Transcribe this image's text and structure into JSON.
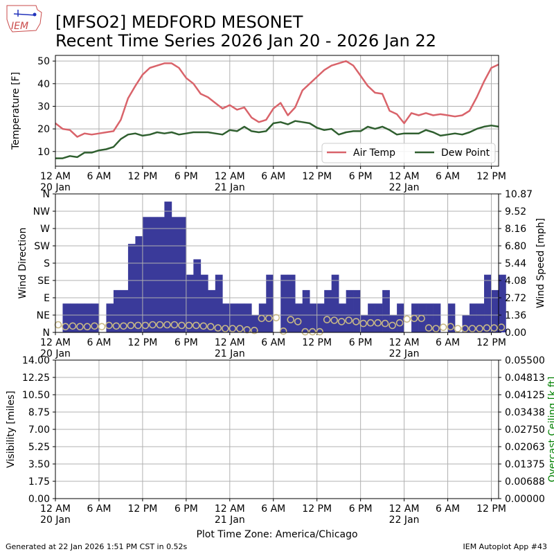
{
  "header": {
    "title_line1": "[MFSO2] MEDFORD MESONET",
    "title_line2": "Recent Time Series 2026 Jan 20 - 2026 Jan 22",
    "logo_text": "IEM"
  },
  "footer": {
    "generated": "Generated at 22 Jan 2026 1:51 PM CST in 0.52s",
    "app": "IEM Autoplot App #43",
    "timezone_label": "Plot Time Zone: America/Chicago"
  },
  "colors": {
    "air_temp": "#d9636a",
    "dew_point": "#2f5f2f",
    "wind_bar": "#3a3a9a",
    "wind_marker": "#c8b986",
    "ceiling_label": "#008000"
  },
  "chart_data": [
    {
      "type": "line",
      "ylabel": "Temperature [F]",
      "xlim": [
        0,
        61
      ],
      "ylim": [
        3.5,
        52.5
      ],
      "yticks": [
        10,
        20,
        30,
        40,
        50
      ],
      "xticks": [
        {
          "h": 0,
          "label": "12 AM",
          "sub": "20 Jan"
        },
        {
          "h": 6,
          "label": "6 AM",
          "sub": ""
        },
        {
          "h": 12,
          "label": "12 PM",
          "sub": ""
        },
        {
          "h": 18,
          "label": "6 PM",
          "sub": ""
        },
        {
          "h": 24,
          "label": "12 AM",
          "sub": "21 Jan"
        },
        {
          "h": 30,
          "label": "6 AM",
          "sub": ""
        },
        {
          "h": 36,
          "label": "12 PM",
          "sub": ""
        },
        {
          "h": 42,
          "label": "6 PM",
          "sub": ""
        },
        {
          "h": 48,
          "label": "12 AM",
          "sub": "22 Jan"
        },
        {
          "h": 54,
          "label": "6 AM",
          "sub": ""
        },
        {
          "h": 60,
          "label": "12 PM",
          "sub": ""
        }
      ],
      "legend": "lower right",
      "series": [
        {
          "name": "Air Temp",
          "x": [
            0,
            1,
            2,
            3,
            4,
            5,
            6,
            7,
            8,
            9,
            10,
            11,
            12,
            13,
            14,
            15,
            16,
            17,
            18,
            19,
            20,
            21,
            22,
            23,
            24,
            25,
            26,
            27,
            28,
            29,
            30,
            31,
            32,
            33,
            34,
            35,
            36,
            37,
            38,
            39,
            40,
            41,
            42,
            43,
            44,
            45,
            46,
            47,
            48,
            49,
            50,
            51,
            52,
            53,
            54,
            55,
            56,
            57,
            58,
            59,
            60,
            61
          ],
          "y": [
            22.5,
            20,
            19.5,
            16.5,
            18,
            17.5,
            18,
            18.5,
            19,
            24,
            33.5,
            39,
            44,
            47,
            48,
            49,
            49,
            47,
            42.5,
            40,
            35.5,
            34,
            31.5,
            29,
            30.5,
            28.5,
            29.5,
            25,
            23,
            24,
            29,
            31.5,
            26,
            29.5,
            37,
            40,
            43,
            46,
            48,
            49,
            50,
            48,
            43.5,
            39,
            36,
            35.5,
            28,
            26.5,
            22.5,
            27,
            26,
            27,
            26,
            26.5,
            26,
            25.5,
            26,
            28,
            34,
            41,
            47,
            48.5
          ]
        },
        {
          "name": "Dew Point",
          "x": [
            0,
            1,
            2,
            3,
            4,
            5,
            6,
            7,
            8,
            9,
            10,
            11,
            12,
            13,
            14,
            15,
            16,
            17,
            18,
            19,
            20,
            21,
            22,
            23,
            24,
            25,
            26,
            27,
            28,
            29,
            30,
            31,
            32,
            33,
            34,
            35,
            36,
            37,
            38,
            39,
            40,
            41,
            42,
            43,
            44,
            45,
            46,
            47,
            48,
            49,
            50,
            51,
            52,
            53,
            54,
            55,
            56,
            57,
            58,
            59,
            60,
            61
          ],
          "y": [
            7,
            7,
            8,
            7.5,
            9.5,
            9.5,
            10.5,
            11,
            12,
            15.5,
            17.5,
            18,
            17,
            17.5,
            18.5,
            18,
            18.5,
            17.5,
            18,
            18.5,
            18.5,
            18.5,
            18,
            17.5,
            19.5,
            19,
            21,
            19,
            18.5,
            19,
            22.5,
            23,
            22,
            23.5,
            23,
            22.5,
            20.5,
            19.5,
            20,
            17.5,
            18.5,
            19,
            19,
            21,
            20,
            21,
            19.5,
            17.5,
            18,
            18,
            18,
            19.5,
            18.5,
            17,
            17.5,
            18,
            17.5,
            18.5,
            20,
            21,
            21.5,
            21
          ]
        }
      ]
    },
    {
      "type": "bar",
      "ylabel": "Wind Direction",
      "y2label": "Wind Speed [mph]",
      "xlim": [
        0,
        61
      ],
      "ylim": [
        0,
        360
      ],
      "yticks": [
        0,
        45,
        90,
        135,
        180,
        225,
        270,
        315,
        360
      ],
      "ytick_labels": [
        "N",
        "NE",
        "E",
        "SE",
        "S",
        "SW",
        "W",
        "NW",
        "N"
      ],
      "y2lim": [
        0,
        10.87
      ],
      "y2ticks": [
        "0.00",
        "1.36",
        "2.72",
        "4.08",
        "5.44",
        "6.80",
        "8.16",
        "9.52",
        "10.87"
      ],
      "series": [
        {
          "name": "Wind Direction (deg)",
          "x": [
            0,
            1,
            2,
            3,
            4,
            5,
            6,
            7,
            8,
            9,
            10,
            11,
            12,
            13,
            14,
            15,
            16,
            17,
            18,
            19,
            20,
            21,
            22,
            23,
            24,
            25,
            26,
            27,
            28,
            29,
            30,
            31,
            32,
            33,
            34,
            35,
            36,
            37,
            38,
            39,
            40,
            41,
            42,
            43,
            44,
            45,
            46,
            47,
            48,
            49,
            50,
            51,
            52,
            53,
            54,
            55,
            56,
            57,
            58,
            59,
            60,
            61
          ],
          "y": [
            0,
            75,
            75,
            75,
            75,
            75,
            0,
            75,
            110,
            110,
            230,
            250,
            300,
            300,
            300,
            340,
            300,
            300,
            150,
            190,
            150,
            110,
            150,
            75,
            75,
            75,
            75,
            45,
            75,
            150,
            0,
            150,
            150,
            75,
            110,
            75,
            75,
            110,
            150,
            75,
            110,
            110,
            45,
            75,
            75,
            110,
            45,
            75,
            0,
            75,
            75,
            75,
            75,
            0,
            75,
            0,
            45,
            75,
            75,
            150,
            110,
            150
          ]
        },
        {
          "name": "Wind Speed (mph)",
          "x": [
            0,
            1,
            2,
            3,
            4,
            5,
            6,
            7,
            8,
            9,
            10,
            11,
            12,
            13,
            14,
            15,
            16,
            17,
            18,
            19,
            20,
            21,
            22,
            23,
            24,
            25,
            26,
            27,
            28,
            29,
            30,
            31,
            32,
            33,
            34,
            35,
            36,
            37,
            38,
            39,
            40,
            41,
            42,
            43,
            44,
            45,
            46,
            47,
            48,
            49,
            50,
            51,
            52,
            53,
            54,
            55,
            56,
            57,
            58,
            59,
            60,
            61
          ],
          "y": [
            0.6,
            0.45,
            0.5,
            0.45,
            0.45,
            0.5,
            0.45,
            0.55,
            0.5,
            0.5,
            0.55,
            0.55,
            0.55,
            0.6,
            0.6,
            0.6,
            0.6,
            0.55,
            0.55,
            0.55,
            0.5,
            0.45,
            0.35,
            0.3,
            0.3,
            0.3,
            0.2,
            0.15,
            1.1,
            1.1,
            1.15,
            0.1,
            1.0,
            0.85,
            0.05,
            0.05,
            0.05,
            1.0,
            0.95,
            0.85,
            0.95,
            0.85,
            0.7,
            0.75,
            0.75,
            0.7,
            0.55,
            0.75,
            1.05,
            1.1,
            1.1,
            0.35,
            0.3,
            0.4,
            0.45,
            0.3,
            0.3,
            0.3,
            0.3,
            0.35,
            0.35,
            0.4
          ]
        }
      ]
    },
    {
      "type": "line",
      "ylabel": "Visibility [miles]",
      "y2label": "Overcast Ceiling [k ft]",
      "xlim": [
        0,
        61
      ],
      "ylim": [
        0,
        14
      ],
      "yticks": [
        "0.00",
        "1.75",
        "3.50",
        "5.25",
        "7.00",
        "8.75",
        "10.50",
        "12.25",
        "14.00"
      ],
      "y2lim": [
        0,
        0.055
      ],
      "y2ticks": [
        "0.00000",
        "0.00688",
        "0.01375",
        "0.02063",
        "0.02750",
        "0.03438",
        "0.04125",
        "0.04813",
        "0.05500"
      ],
      "series": []
    }
  ]
}
